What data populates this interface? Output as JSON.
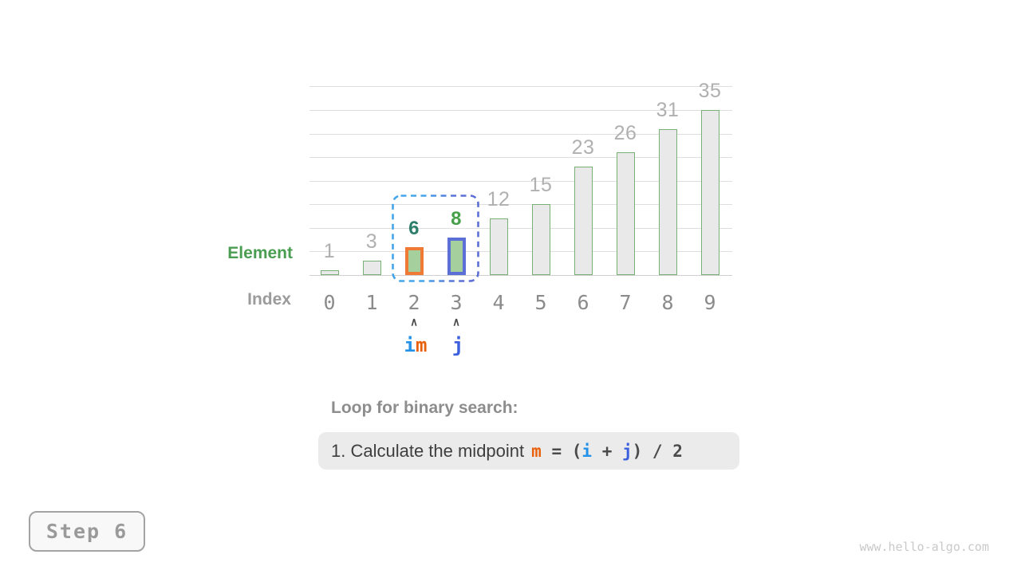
{
  "chart_data": {
    "type": "bar",
    "categories": [
      0,
      1,
      2,
      3,
      4,
      5,
      6,
      7,
      8,
      9
    ],
    "values": [
      1,
      3,
      6,
      8,
      12,
      15,
      23,
      26,
      31,
      35
    ],
    "title": "",
    "xlabel": "Index",
    "ylabel": "Element",
    "ylim": [
      0,
      40
    ],
    "grid_step": 5,
    "grid": true,
    "highlights": [
      {
        "index": 2,
        "border_color": "#ee7a35",
        "fill": "#a6cf9e",
        "value_color": "#2c7e6b"
      },
      {
        "index": 3,
        "border_color": "#5c6fd6",
        "fill": "#a6cf9e",
        "value_color": "#46a049"
      }
    ],
    "selection_range": {
      "from_index": 2,
      "to_index": 3
    }
  },
  "pointers": [
    {
      "index": 2,
      "caret": "∧",
      "labels": [
        {
          "text": "i",
          "color": "#2492e8"
        },
        {
          "text": "m",
          "color": "#e8610d"
        }
      ]
    },
    {
      "index": 3,
      "caret": "∧",
      "labels": [
        {
          "text": "j",
          "color": "#3b5fdd"
        }
      ]
    }
  ],
  "caption": {
    "heading": "Loop for binary search:",
    "formula_prefix": "1. Calculate the midpoint",
    "tokens": [
      {
        "text": "m",
        "color": "#e8610d"
      },
      {
        "text": " = ",
        "color": "#4b4b4b"
      },
      {
        "text": "(",
        "color": "#4b4b4b"
      },
      {
        "text": "i",
        "color": "#2492e8"
      },
      {
        "text": " + ",
        "color": "#4b4b4b"
      },
      {
        "text": "j",
        "color": "#3b5fdd"
      },
      {
        "text": ") / 2",
        "color": "#4b4b4b"
      }
    ]
  },
  "step_badge": {
    "label": "Step 6"
  },
  "watermark": {
    "text": "www.hello-algo.com"
  },
  "colors": {
    "bar_fill": "#e9e9e9",
    "bar_border": "#79af74",
    "value_label": "#b0b0b0",
    "grid": "#dedede",
    "selection_left": "#45a5ea",
    "selection_right": "#5b6fd6"
  }
}
